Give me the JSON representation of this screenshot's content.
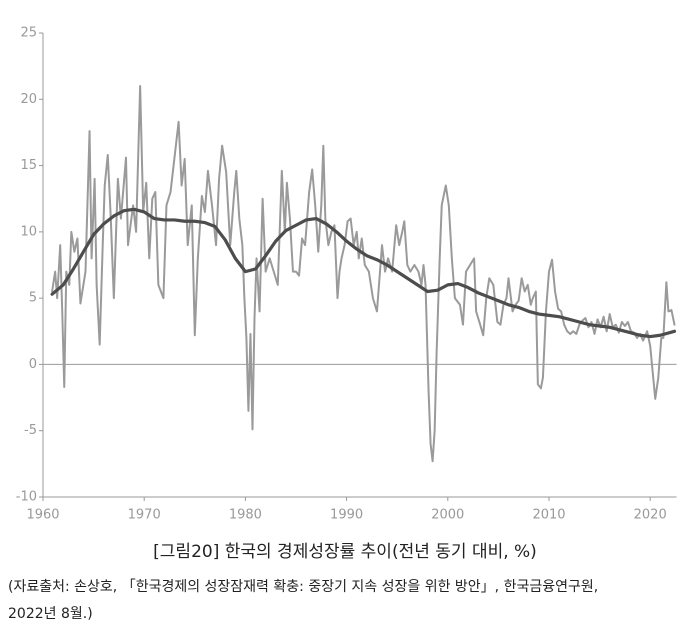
{
  "chart_data": {
    "type": "line",
    "title": "[그림20] 한국의 경제성장률 추이(전년 동기 대비, %)",
    "source": [
      "(자료출처: 손상호, 「한국경제의 성장잠재력 확충: 중장기 지속 성장을 위한 방안」, 한국금융연구원,",
      "2022년 8월.)"
    ],
    "xlim": [
      1960,
      2022.6
    ],
    "xticks": [
      1960,
      1970,
      1980,
      1990,
      2000,
      2010,
      2020
    ],
    "ylim": [
      -10,
      25
    ],
    "yticks": [
      -10,
      -5,
      0,
      5,
      10,
      15,
      20,
      25
    ],
    "zero_line": true,
    "series": [
      {
        "color": "#9a9a9a",
        "width": 2,
        "x": [
          1960.9,
          1961.2,
          1961.4,
          1961.7,
          1961.9,
          1962.1,
          1962.3,
          1962.6,
          1962.8,
          1963.1,
          1963.4,
          1963.7,
          1964.2,
          1964.6,
          1964.8,
          1965.1,
          1965.3,
          1965.6,
          1965.9,
          1966.1,
          1966.4,
          1966.7,
          1967.0,
          1967.4,
          1967.7,
          1968.2,
          1968.4,
          1968.9,
          1969.2,
          1969.6,
          1969.9,
          1970.2,
          1970.5,
          1970.8,
          1971.1,
          1971.4,
          1971.9,
          1972.2,
          1972.6,
          1973.4,
          1973.7,
          1974.0,
          1974.3,
          1974.7,
          1975.0,
          1975.3,
          1975.7,
          1976.0,
          1976.3,
          1976.7,
          1977.1,
          1977.4,
          1977.7,
          1978.1,
          1978.5,
          1978.9,
          1979.1,
          1979.4,
          1979.7,
          1979.9,
          1980.1,
          1980.3,
          1980.5,
          1980.7,
          1980.9,
          1981.1,
          1981.4,
          1981.7,
          1982.0,
          1982.4,
          1982.8,
          1983.2,
          1983.6,
          1983.9,
          1984.1,
          1984.4,
          1984.7,
          1985.0,
          1985.3,
          1985.6,
          1985.9,
          1986.3,
          1986.6,
          1986.9,
          1987.2,
          1987.5,
          1987.7,
          1987.9,
          1988.2,
          1988.5,
          1988.8,
          1989.1,
          1989.3,
          1989.5,
          1989.8,
          1990.1,
          1990.4,
          1990.7,
          1991.0,
          1991.2,
          1991.5,
          1991.8,
          1992.2,
          1992.6,
          1993.0,
          1993.2,
          1993.5,
          1993.8,
          1994.1,
          1994.5,
          1994.9,
          1995.2,
          1995.5,
          1995.7,
          1996.0,
          1996.3,
          1996.7,
          1997.1,
          1997.4,
          1997.6,
          1997.8,
          1998.1,
          1998.3,
          1998.5,
          1998.7,
          1998.9,
          1999.2,
          1999.4,
          1999.8,
          2000.1,
          2000.4,
          2000.7,
          2001.2,
          2001.5,
          2001.8,
          2002.2,
          2002.6,
          2002.8,
          2003.2,
          2003.5,
          2003.8,
          2004.1,
          2004.5,
          2004.9,
          2005.2,
          2005.5,
          2005.8,
          2006.0,
          2006.4,
          2006.7,
          2007.0,
          2007.3,
          2007.6,
          2007.9,
          2008.2,
          2008.4,
          2008.7,
          2008.9,
          2009.2,
          2009.4,
          2009.7,
          2010.0,
          2010.3,
          2010.6,
          2010.9,
          2011.2,
          2011.5,
          2011.8,
          2012.1,
          2012.4,
          2012.7,
          2013.0,
          2013.3,
          2013.6,
          2013.9,
          2014.2,
          2014.5,
          2014.8,
          2015.1,
          2015.4,
          2015.7,
          2016.0,
          2016.3,
          2016.6,
          2016.9,
          2017.2,
          2017.5,
          2017.8,
          2018.1,
          2018.4,
          2018.7,
          2019.0,
          2019.3,
          2019.7,
          2020.0,
          2020.3,
          2020.5,
          2020.8,
          2021.1,
          2021.3,
          2021.6,
          2021.8,
          2022.1,
          2022.4
        ],
        "values": [
          5.5,
          7,
          5,
          9,
          4,
          -1.7,
          7,
          6,
          10,
          8.5,
          9.5,
          4.6,
          7,
          17.6,
          8,
          14,
          6,
          1.5,
          9,
          13.5,
          15.8,
          11,
          5,
          14,
          11,
          15.6,
          9,
          12,
          10,
          21,
          11.5,
          13.7,
          8,
          12.5,
          13,
          6,
          5,
          12,
          13,
          18.3,
          13.5,
          15.5,
          9,
          12,
          2.2,
          8,
          12.7,
          11.5,
          14.6,
          12,
          9,
          14,
          16.5,
          14.5,
          9,
          13,
          14.6,
          11,
          9,
          5,
          2,
          -3.5,
          2.3,
          -4.9,
          3.5,
          8,
          4,
          12.5,
          7,
          8,
          7,
          6,
          14.6,
          10,
          13.7,
          11,
          7,
          7,
          6.7,
          9.5,
          9,
          13,
          14.7,
          12,
          8.5,
          12,
          16.5,
          11,
          9,
          10,
          10.5,
          5,
          7,
          8,
          9,
          10.8,
          11,
          9,
          10,
          8,
          9.5,
          7.5,
          7,
          5,
          4,
          6,
          9,
          7,
          8,
          7,
          10.5,
          9,
          10,
          10.8,
          7.5,
          7,
          7.5,
          7,
          6,
          7.5,
          6,
          -2,
          -6,
          -7.3,
          -5,
          1,
          8,
          12,
          13.5,
          12,
          8,
          5,
          4.5,
          3,
          7,
          7.5,
          8,
          4,
          3,
          2.2,
          5,
          6.5,
          6,
          3.2,
          3,
          4.5,
          5,
          6.5,
          4,
          4.5,
          4.8,
          6.5,
          5.5,
          6,
          4.5,
          5,
          5.5,
          -1.5,
          -1.8,
          -1,
          4,
          7,
          7.9,
          5.5,
          4.2,
          4,
          3,
          2.5,
          2.3,
          2.5,
          2.3,
          3,
          3.3,
          3.5,
          2.8,
          3.2,
          2.3,
          3.4,
          2.8,
          3.6,
          2.5,
          3.8,
          2.8,
          3,
          2.4,
          3.2,
          2.9,
          3.2,
          2.5,
          2.4,
          2,
          2.3,
          1.8,
          2.5,
          1.4,
          -1,
          -2.6,
          -1,
          2,
          2,
          6.2,
          4,
          4.1,
          3
        ]
      },
      {
        "color": "#4d4d4d",
        "width": 3.2,
        "x": [
          1960.9,
          1962,
          1963,
          1964,
          1965,
          1966,
          1967,
          1968,
          1969,
          1970,
          1971,
          1972,
          1973,
          1974,
          1975,
          1976,
          1977,
          1978,
          1979,
          1980,
          1981,
          1982,
          1983,
          1984,
          1985,
          1986,
          1987,
          1988,
          1989,
          1990,
          1991,
          1992,
          1993,
          1994,
          1995,
          1996,
          1997,
          1998,
          1999,
          2000,
          2001,
          2002,
          2003,
          2004,
          2005,
          2006,
          2007,
          2008,
          2009,
          2010,
          2011,
          2012,
          2013,
          2014,
          2015,
          2016,
          2017,
          2018,
          2019,
          2020,
          2021,
          2022.4
        ],
        "values": [
          5.3,
          6.0,
          7.2,
          8.5,
          9.8,
          10.6,
          11.2,
          11.6,
          11.7,
          11.5,
          11.0,
          10.9,
          10.9,
          10.8,
          10.8,
          10.7,
          10.4,
          9.4,
          8.0,
          7.0,
          7.2,
          8.2,
          9.3,
          10.1,
          10.5,
          10.9,
          11.0,
          10.6,
          10.0,
          9.3,
          8.7,
          8.2,
          7.9,
          7.5,
          7.0,
          6.5,
          6.0,
          5.5,
          5.6,
          6.0,
          6.1,
          5.8,
          5.4,
          5.1,
          4.8,
          4.5,
          4.3,
          4.0,
          3.8,
          3.7,
          3.6,
          3.4,
          3.2,
          3.0,
          2.9,
          2.8,
          2.6,
          2.4,
          2.2,
          2.1,
          2.2,
          2.5
        ]
      }
    ]
  }
}
